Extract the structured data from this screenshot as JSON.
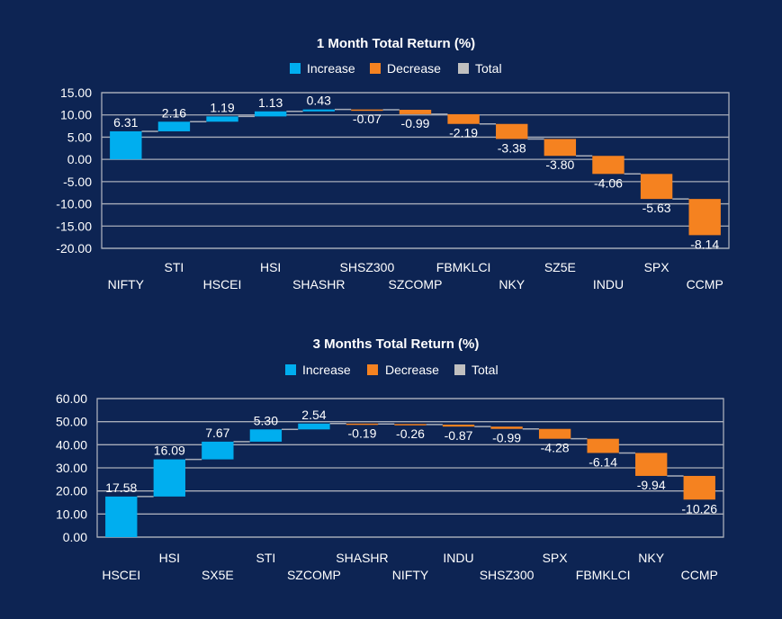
{
  "colors": {
    "background": "#0d2453",
    "increase": "#00aeef",
    "decrease": "#f58220",
    "total": "#c0c0c0",
    "grid": "#a8adb9",
    "connector": "#a8adb9"
  },
  "chart_data": [
    {
      "type": "bar",
      "subtype": "waterfall",
      "title": "1 Month Total Return (%)",
      "legend": [
        "Increase",
        "Decrease",
        "Total"
      ],
      "legend_position": "top",
      "xlabel": "",
      "ylabel": "",
      "ylim": [
        -20,
        15
      ],
      "yticks": [
        "15.00",
        "10.00",
        "5.00",
        "0.00",
        "-5.00",
        "-10.00",
        "-15.00",
        "-20.00"
      ],
      "grid": true,
      "categories": [
        "NIFTY",
        "STI",
        "HSCEI",
        "HSI",
        "SHASHR",
        "SHSZ300",
        "SZCOMP",
        "FBMKLCI",
        "NKY",
        "SZ5E",
        "INDU",
        "SPX",
        "CCMP"
      ],
      "values": [
        6.31,
        2.16,
        1.19,
        1.13,
        0.43,
        -0.07,
        -0.99,
        -2.19,
        -3.38,
        -3.8,
        -4.06,
        -5.63,
        -8.14
      ],
      "labels": [
        "6.31",
        "2.16",
        "1.19",
        "1.13",
        "0.43",
        "-0.07",
        "-0.99",
        "-2.19",
        "-3.38",
        "-3.80",
        "-4.06",
        "-5.63",
        "-8.14"
      ]
    },
    {
      "type": "bar",
      "subtype": "waterfall",
      "title": "3 Months Total Return (%)",
      "legend": [
        "Increase",
        "Decrease",
        "Total"
      ],
      "legend_position": "top",
      "xlabel": "",
      "ylabel": "",
      "ylim": [
        0,
        60
      ],
      "yticks": [
        "60.00",
        "50.00",
        "40.00",
        "30.00",
        "20.00",
        "10.00",
        "0.00"
      ],
      "grid": true,
      "categories": [
        "HSCEI",
        "HSI",
        "SX5E",
        "STI",
        "SZCOMP",
        "SHASHR",
        "NIFTY",
        "INDU",
        "SHSZ300",
        "SPX",
        "FBMKLCI",
        "NKY",
        "CCMP"
      ],
      "values": [
        17.58,
        16.09,
        7.67,
        5.3,
        2.54,
        -0.19,
        -0.26,
        -0.87,
        -0.99,
        -4.28,
        -6.14,
        -9.94,
        -10.26
      ],
      "labels": [
        "17.58",
        "16.09",
        "7.67",
        "5.30",
        "2.54",
        "-0.19",
        "-0.26",
        "-0.87",
        "-0.99",
        "-4.28",
        "-6.14",
        "-9.94",
        "-10.26"
      ]
    }
  ]
}
